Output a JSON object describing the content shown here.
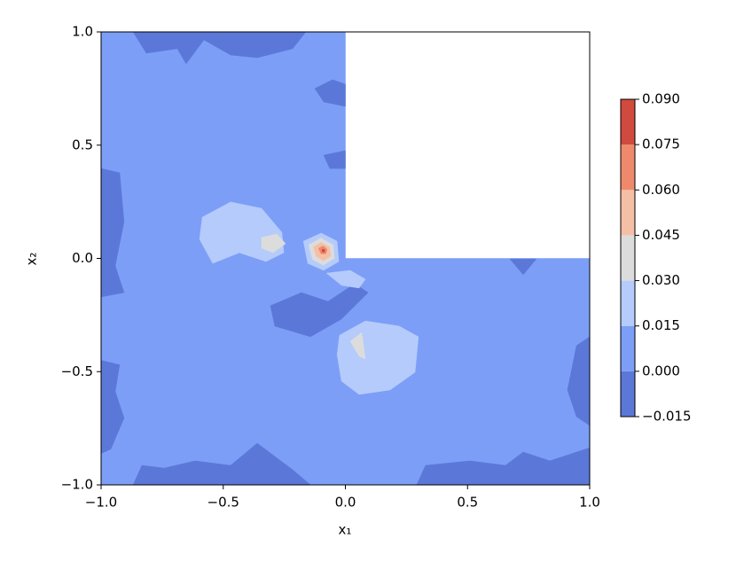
{
  "chart_data": {
    "type": "contour",
    "xlabel": "x₁",
    "ylabel": "x₂",
    "xlim": [
      -1,
      1
    ],
    "ylim": [
      -1,
      1
    ],
    "xticks": [
      {
        "value": -1,
        "label": "−1.0"
      },
      {
        "value": -0.5,
        "label": "−0.5"
      },
      {
        "value": 0,
        "label": "0.0"
      },
      0.5,
      {
        "value": 1,
        "label": "1.0"
      }
    ],
    "yticks": [
      {
        "value": -1,
        "label": "−1.0"
      },
      {
        "value": -0.5,
        "label": "−0.5"
      },
      {
        "value": 0,
        "label": "0.0"
      },
      0.5,
      {
        "value": 1,
        "label": "1.0"
      }
    ],
    "colorbar_ticks": [
      {
        "value": -0.015,
        "label": "−0.015"
      },
      {
        "value": 0,
        "label": "0.000"
      },
      0.015,
      {
        "value": 0.03,
        "label": "0.030"
      },
      0.045,
      {
        "value": 0.06,
        "label": "0.060"
      },
      0.075,
      {
        "value": 0.09,
        "label": "0.090"
      }
    ],
    "colors": [
      "#5b78d9",
      "#7c9ef7",
      "#b4cbfb",
      "#dcdcdc",
      "#f5bfa5",
      "#ee8a6b",
      "#d04a3d"
    ],
    "regions": [
      {
        "level": 0,
        "points": [
          [
            -1,
            -1
          ],
          [
            1,
            -1
          ],
          [
            1,
            0
          ],
          [
            0,
            0
          ],
          [
            0,
            1
          ],
          [
            -1,
            1
          ]
        ]
      },
      {
        "level": -0.015,
        "points": [
          [
            -0.869,
            1
          ],
          [
            -0.815,
            0.906
          ],
          [
            -0.688,
            0.926
          ],
          [
            -0.652,
            0.859
          ],
          [
            -0.579,
            0.965
          ],
          [
            -0.47,
            0.898
          ],
          [
            -0.361,
            0.886
          ],
          [
            -0.216,
            0.926
          ],
          [
            -0.162,
            1
          ]
        ]
      },
      {
        "level": -0.015,
        "points": [
          [
            -0.307,
            -0.209
          ],
          [
            -0.18,
            -0.151
          ],
          [
            -0.071,
            -0.19
          ],
          [
            0.038,
            -0.112
          ],
          [
            0.093,
            -0.151
          ],
          [
            -0.016,
            -0.268
          ],
          [
            -0.143,
            -0.346
          ],
          [
            -0.289,
            -0.299
          ]
        ]
      },
      {
        "level": -0.015,
        "points": [
          [
            -1,
            0.397
          ],
          [
            -0.924,
            0.378
          ],
          [
            -0.906,
            0.162
          ],
          [
            -0.942,
            -0.033
          ],
          [
            -0.906,
            -0.151
          ],
          [
            -1,
            -0.17
          ]
        ]
      },
      {
        "level": -0.015,
        "points": [
          [
            -0.869,
            -1
          ],
          [
            -0.833,
            -0.914
          ],
          [
            -0.742,
            -0.926
          ],
          [
            -0.615,
            -0.894
          ],
          [
            -0.47,
            -0.914
          ],
          [
            -0.361,
            -0.816
          ],
          [
            -0.216,
            -0.933
          ],
          [
            -0.143,
            -1
          ]
        ]
      },
      {
        "level": -0.015,
        "points": [
          [
            0.292,
            -1
          ],
          [
            0.328,
            -0.914
          ],
          [
            0.51,
            -0.894
          ],
          [
            0.655,
            -0.914
          ],
          [
            0.728,
            -0.855
          ],
          [
            0.837,
            -0.894
          ],
          [
            1,
            -0.836
          ],
          [
            1,
            -1
          ]
        ]
      },
      {
        "level": -0.015,
        "points": [
          [
            0.673,
            -0.002
          ],
          [
            0.782,
            -0.002
          ],
          [
            0.728,
            -0.072
          ]
        ]
      },
      {
        "level": -0.015,
        "points": [
          [
            1,
            -0.346
          ],
          [
            0.946,
            -0.385
          ],
          [
            0.909,
            -0.581
          ],
          [
            0.946,
            -0.699
          ],
          [
            1,
            -0.738
          ]
        ]
      },
      {
        "level": -0.015,
        "points": [
          [
            -0.125,
            0.75
          ],
          [
            -0.053,
            0.789
          ],
          [
            0,
            0.769
          ],
          [
            0,
            0.671
          ],
          [
            -0.089,
            0.691
          ]
        ]
      },
      {
        "level": -0.015,
        "points": [
          [
            -0.089,
            0.456
          ],
          [
            0,
            0.476
          ],
          [
            0,
            0.397
          ],
          [
            -0.064,
            0.397
          ]
        ]
      },
      {
        "level": -0.015,
        "points": [
          [
            -1,
            -0.45
          ],
          [
            -0.924,
            -0.47
          ],
          [
            -0.942,
            -0.587
          ],
          [
            -0.906,
            -0.705
          ],
          [
            -0.96,
            -0.842
          ],
          [
            -1,
            -0.862
          ]
        ]
      },
      {
        "level": 0.015,
        "points": [
          [
            -0.586,
            0.182
          ],
          [
            -0.47,
            0.249
          ],
          [
            -0.343,
            0.221
          ],
          [
            -0.26,
            0.115
          ],
          [
            -0.252,
            0.025
          ],
          [
            -0.325,
            -0.014
          ],
          [
            -0.434,
            0.025
          ],
          [
            -0.543,
            -0.022
          ],
          [
            -0.597,
            0.084
          ]
        ]
      },
      {
        "level": 0.03,
        "points": [
          [
            -0.343,
            0.092
          ],
          [
            -0.281,
            0.108
          ],
          [
            -0.245,
            0.065
          ],
          [
            -0.296,
            0.025
          ],
          [
            -0.343,
            0.045
          ]
        ]
      },
      {
        "level": 0.015,
        "points": [
          [
            -0.078,
            -0.065
          ],
          [
            0.02,
            -0.053
          ],
          [
            0.082,
            -0.092
          ],
          [
            0.056,
            -0.131
          ],
          [
            -0.016,
            -0.119
          ]
        ]
      },
      {
        "level": 0.015,
        "points": [
          [
            -0.024,
            -0.339
          ],
          [
            0.082,
            -0.276
          ],
          [
            0.22,
            -0.299
          ],
          [
            0.299,
            -0.346
          ],
          [
            0.285,
            -0.503
          ],
          [
            0.183,
            -0.581
          ],
          [
            0.056,
            -0.601
          ],
          [
            -0.016,
            -0.542
          ],
          [
            -0.034,
            -0.425
          ]
        ]
      },
      {
        "level": 0.03,
        "points": [
          [
            0.02,
            -0.366
          ],
          [
            0.067,
            -0.327
          ],
          [
            0.082,
            -0.444
          ],
          [
            0.056,
            -0.432
          ]
        ]
      },
      {
        "level": 0.015,
        "points": [
          [
            -0.172,
            0.076
          ],
          [
            -0.099,
            0.112
          ],
          [
            -0.034,
            0.076
          ],
          [
            -0.027,
            -0.014
          ],
          [
            -0.089,
            -0.053
          ],
          [
            -0.154,
            -0.022
          ]
        ]
      },
      {
        "level": 0.03,
        "points": [
          [
            -0.15,
            0.06
          ],
          [
            -0.1,
            0.09
          ],
          [
            -0.05,
            0.06
          ],
          [
            -0.045,
            0
          ],
          [
            -0.09,
            -0.03
          ],
          [
            -0.135,
            -0.005
          ]
        ]
      },
      {
        "level": 0.045,
        "points": [
          [
            -0.13,
            0.05
          ],
          [
            -0.1,
            0.07
          ],
          [
            -0.065,
            0.05
          ],
          [
            -0.06,
            0.01
          ],
          [
            -0.09,
            -0.01
          ],
          [
            -0.12,
            0.01
          ]
        ]
      },
      {
        "level": 0.06,
        "points": [
          [
            -0.11,
            0.045
          ],
          [
            -0.09,
            0.055
          ],
          [
            -0.075,
            0.04
          ],
          [
            -0.08,
            0.02
          ],
          [
            -0.1,
            0.02
          ]
        ]
      },
      {
        "level": 0.075,
        "points": [
          [
            -0.095,
            0.04
          ],
          [
            -0.085,
            0.04
          ],
          [
            -0.085,
            0.028
          ],
          [
            -0.095,
            0.028
          ]
        ]
      }
    ]
  }
}
